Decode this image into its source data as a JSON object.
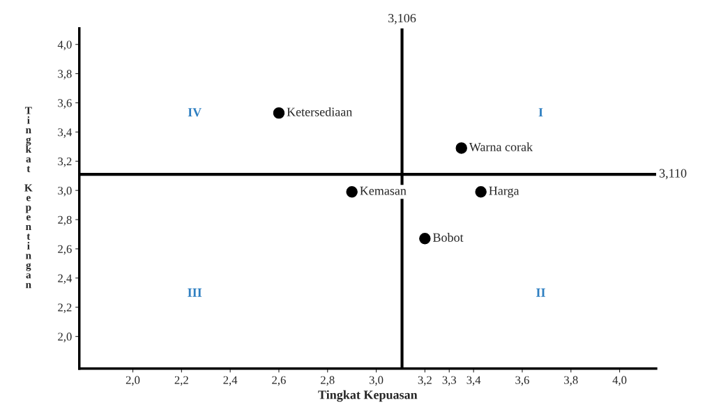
{
  "chart_data": {
    "type": "scatter",
    "xlabel": "Tingkat Kepuasan",
    "ylabel": "Tingkat Kepentingan",
    "x": [
      2.6,
      2.9,
      3.2,
      3.35,
      3.43
    ],
    "series": [
      {
        "color": "#000000",
        "values": [
          3.53,
          2.99,
          2.67,
          3.29,
          2.99
        ]
      }
    ],
    "marker": "circle",
    "xlim": [
      1.78,
      4.15
    ],
    "ylim": [
      1.78,
      4.11
    ],
    "xticks": [
      {
        "value": 2.0,
        "label": "2,0"
      },
      {
        "value": 2.2,
        "label": "2,2"
      },
      {
        "value": 2.4,
        "label": "2,4"
      },
      {
        "value": 2.6,
        "label": "2,6"
      },
      {
        "value": 2.8,
        "label": "2,8"
      },
      {
        "value": 3.0,
        "label": "3,0"
      },
      {
        "value": 3.2,
        "label": "3,2"
      },
      {
        "value": 3.3,
        "label": "3,3"
      },
      {
        "value": 3.4,
        "label": "3,4"
      },
      {
        "value": 3.6,
        "label": "3,6"
      },
      {
        "value": 3.8,
        "label": "3,8"
      },
      {
        "value": 4.0,
        "label": "4,0"
      }
    ],
    "yticks": [
      {
        "value": 2.0,
        "label": "2,0"
      },
      {
        "value": 2.2,
        "label": "2,2"
      },
      {
        "value": 2.4,
        "label": "2,4"
      },
      {
        "value": 2.6,
        "label": "2,6"
      },
      {
        "value": 2.8,
        "label": "2,8"
      },
      {
        "value": 3.0,
        "label": "3,0"
      },
      {
        "value": 3.2,
        "label": "3,2"
      },
      {
        "value": 3.4,
        "label": "3,4"
      },
      {
        "value": 3.6,
        "label": "3,6"
      },
      {
        "value": 3.8,
        "label": "3,8"
      },
      {
        "value": 4.0,
        "label": "4,0"
      }
    ],
    "ref_lines": [
      {
        "axis": "x",
        "value": 3.106,
        "label": "3,106",
        "color": "#000000"
      },
      {
        "axis": "y",
        "value": 3.11,
        "label": "3,110",
        "color": "#000000"
      }
    ],
    "annotations": [
      {
        "text": "Ketersediaan",
        "x": 2.6,
        "y": 3.53
      },
      {
        "text": "Kemasan",
        "x": 2.9,
        "y": 2.99
      },
      {
        "text": "Bobot",
        "x": 3.2,
        "y": 2.67
      },
      {
        "text": "Warna corak",
        "x": 3.35,
        "y": 3.29
      },
      {
        "text": "Harga",
        "x": 3.43,
        "y": 2.99
      },
      "I",
      "II",
      "III",
      "IV"
    ],
    "grid": false,
    "legend": false
  }
}
